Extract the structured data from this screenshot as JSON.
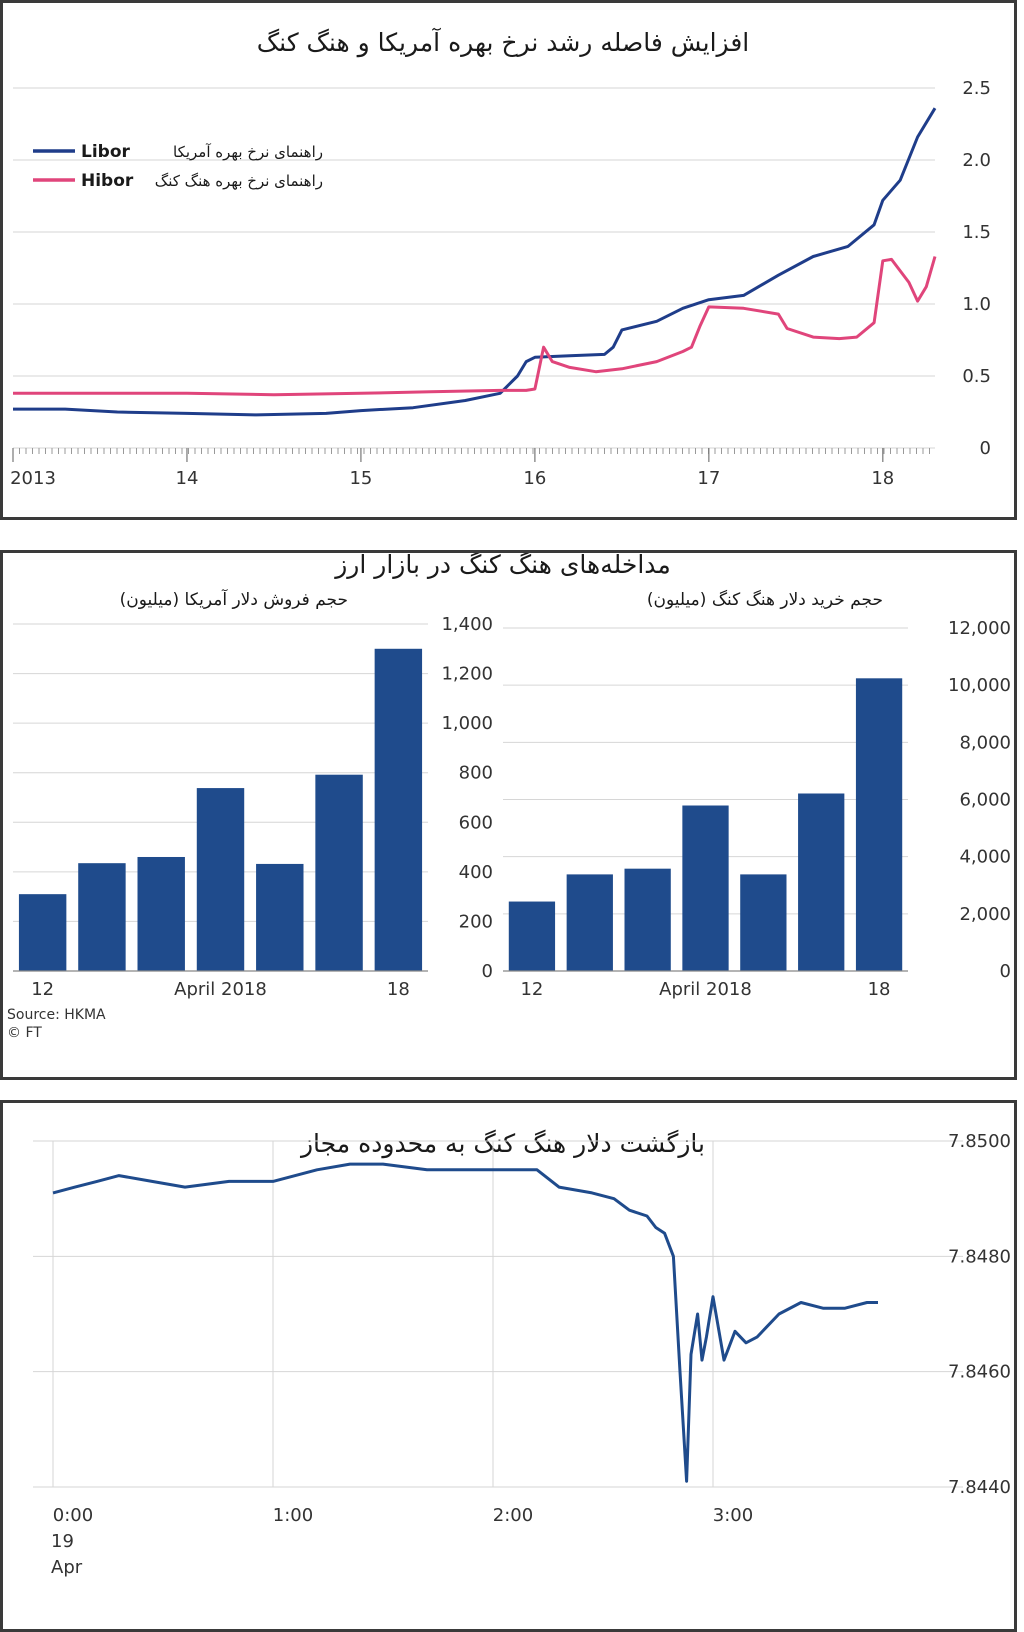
{
  "chart_data": [
    {
      "type": "line",
      "title": "افزایش فاصله رشد نرخ بهره آمریکا و هنگ کنگ",
      "x_tick_labels": [
        "2013",
        "14",
        "15",
        "16",
        "17",
        "18"
      ],
      "y_tick_labels": [
        "2.5",
        "2.0",
        "1.5",
        "1.0",
        "0.5",
        "0"
      ],
      "ylim": [
        0,
        2.5
      ],
      "xlim": [
        2013,
        2018.3
      ],
      "grid": true,
      "legend_position": "top-left",
      "series": [
        {
          "name": "Libor",
          "name_fa": "راهنمای نرخ بهره آمریکا",
          "color": "#1f3d8a",
          "x": [
            2013,
            2013.3,
            2013.6,
            2014,
            2014.4,
            2014.8,
            2015,
            2015.3,
            2015.6,
            2015.8,
            2015.9,
            2015.95,
            2016,
            2016.2,
            2016.4,
            2016.45,
            2016.5,
            2016.7,
            2016.85,
            2017,
            2017.2,
            2017.4,
            2017.6,
            2017.8,
            2017.95,
            2018,
            2018.1,
            2018.2,
            2018.3
          ],
          "y": [
            0.27,
            0.27,
            0.25,
            0.24,
            0.23,
            0.24,
            0.26,
            0.28,
            0.33,
            0.38,
            0.5,
            0.6,
            0.63,
            0.64,
            0.65,
            0.7,
            0.82,
            0.88,
            0.97,
            1.03,
            1.06,
            1.2,
            1.33,
            1.4,
            1.55,
            1.72,
            1.86,
            2.16,
            2.36
          ]
        },
        {
          "name": "Hibor",
          "name_fa": "راهنمای نرخ بهره هنگ کنگ",
          "color": "#e0457b",
          "x": [
            2013,
            2013.5,
            2014,
            2014.5,
            2015,
            2015.4,
            2015.8,
            2015.95,
            2016,
            2016.05,
            2016.1,
            2016.2,
            2016.35,
            2016.5,
            2016.7,
            2016.85,
            2016.9,
            2016.95,
            2017,
            2017.2,
            2017.4,
            2017.45,
            2017.6,
            2017.75,
            2017.85,
            2017.95,
            2018,
            2018.05,
            2018.15,
            2018.2,
            2018.25,
            2018.3
          ],
          "y": [
            0.38,
            0.38,
            0.38,
            0.37,
            0.38,
            0.39,
            0.4,
            0.4,
            0.41,
            0.7,
            0.6,
            0.56,
            0.53,
            0.55,
            0.6,
            0.67,
            0.7,
            0.85,
            0.98,
            0.97,
            0.93,
            0.83,
            0.77,
            0.76,
            0.77,
            0.87,
            1.3,
            1.31,
            1.15,
            1.02,
            1.12,
            1.33
          ]
        }
      ]
    },
    {
      "type": "bar",
      "title": "مداخله‌های هنگ کنگ در بازار ارز",
      "subtitle": "حجم فروش دلار آمریکا (میلیون)",
      "categories": [
        "12",
        "13",
        "14",
        "15",
        "16",
        "17",
        "18"
      ],
      "x_tick_labels": [
        "12",
        "April 2018",
        "18"
      ],
      "y_tick_labels": [
        "1,400",
        "1,200",
        "1,000",
        "800",
        "600",
        "400",
        "200",
        "0"
      ],
      "ylim": [
        0,
        1400
      ],
      "values": [
        310,
        435,
        460,
        738,
        432,
        792,
        1300
      ],
      "color": "#1f4b8c",
      "note": "Source: HKMA",
      "note2": "© FT"
    },
    {
      "type": "bar",
      "subtitle": "حجم خرید دلار هنگ کنگ (میلیون)",
      "categories": [
        "12",
        "13",
        "14",
        "15",
        "16",
        "17",
        "18"
      ],
      "x_tick_labels": [
        "12",
        "April 2018",
        "18"
      ],
      "y_tick_labels": [
        "12,000",
        "10,000",
        "8,000",
        "6,000",
        "4,000",
        "2,000",
        "0"
      ],
      "ylim": [
        0,
        12000
      ],
      "values": [
        2430,
        3380,
        3580,
        5790,
        3380,
        6210,
        10240
      ],
      "color": "#1f4b8c"
    },
    {
      "type": "line",
      "title": "بازگشت دلار هنگ کنگ به محدوده مجاز",
      "x_tick_labels": [
        "0:00",
        "1:00",
        "2:00",
        "3:00"
      ],
      "x_tick_sub": [
        "19",
        "Apr"
      ],
      "y_tick_labels": [
        "7.8500",
        "7.8480",
        "7.8460",
        "7.8440"
      ],
      "ylim": [
        7.844,
        7.85
      ],
      "xlim": [
        0,
        3.75
      ],
      "grid": true,
      "series": [
        {
          "color": "#1f4b8c",
          "x": [
            0,
            0.1,
            0.2,
            0.3,
            0.45,
            0.6,
            0.8,
            1.0,
            1.2,
            1.35,
            1.5,
            1.7,
            1.9,
            2.1,
            2.2,
            2.3,
            2.45,
            2.55,
            2.62,
            2.7,
            2.74,
            2.78,
            2.82,
            2.85,
            2.88,
            2.9,
            2.93,
            2.95,
            2.97,
            3.0,
            3.05,
            3.1,
            3.15,
            3.2,
            3.3,
            3.4,
            3.5,
            3.6,
            3.7,
            3.75
          ],
          "y": [
            7.8491,
            7.8492,
            7.8493,
            7.8494,
            7.8493,
            7.8492,
            7.8493,
            7.8493,
            7.8495,
            7.8496,
            7.8496,
            7.8495,
            7.8495,
            7.8495,
            7.8495,
            7.8492,
            7.8491,
            7.849,
            7.8488,
            7.8487,
            7.8485,
            7.8484,
            7.848,
            7.846,
            7.8441,
            7.8463,
            7.847,
            7.8462,
            7.8466,
            7.8473,
            7.8462,
            7.8467,
            7.8465,
            7.8466,
            7.847,
            7.8472,
            7.8471,
            7.8471,
            7.8472,
            7.8472
          ]
        }
      ]
    }
  ]
}
